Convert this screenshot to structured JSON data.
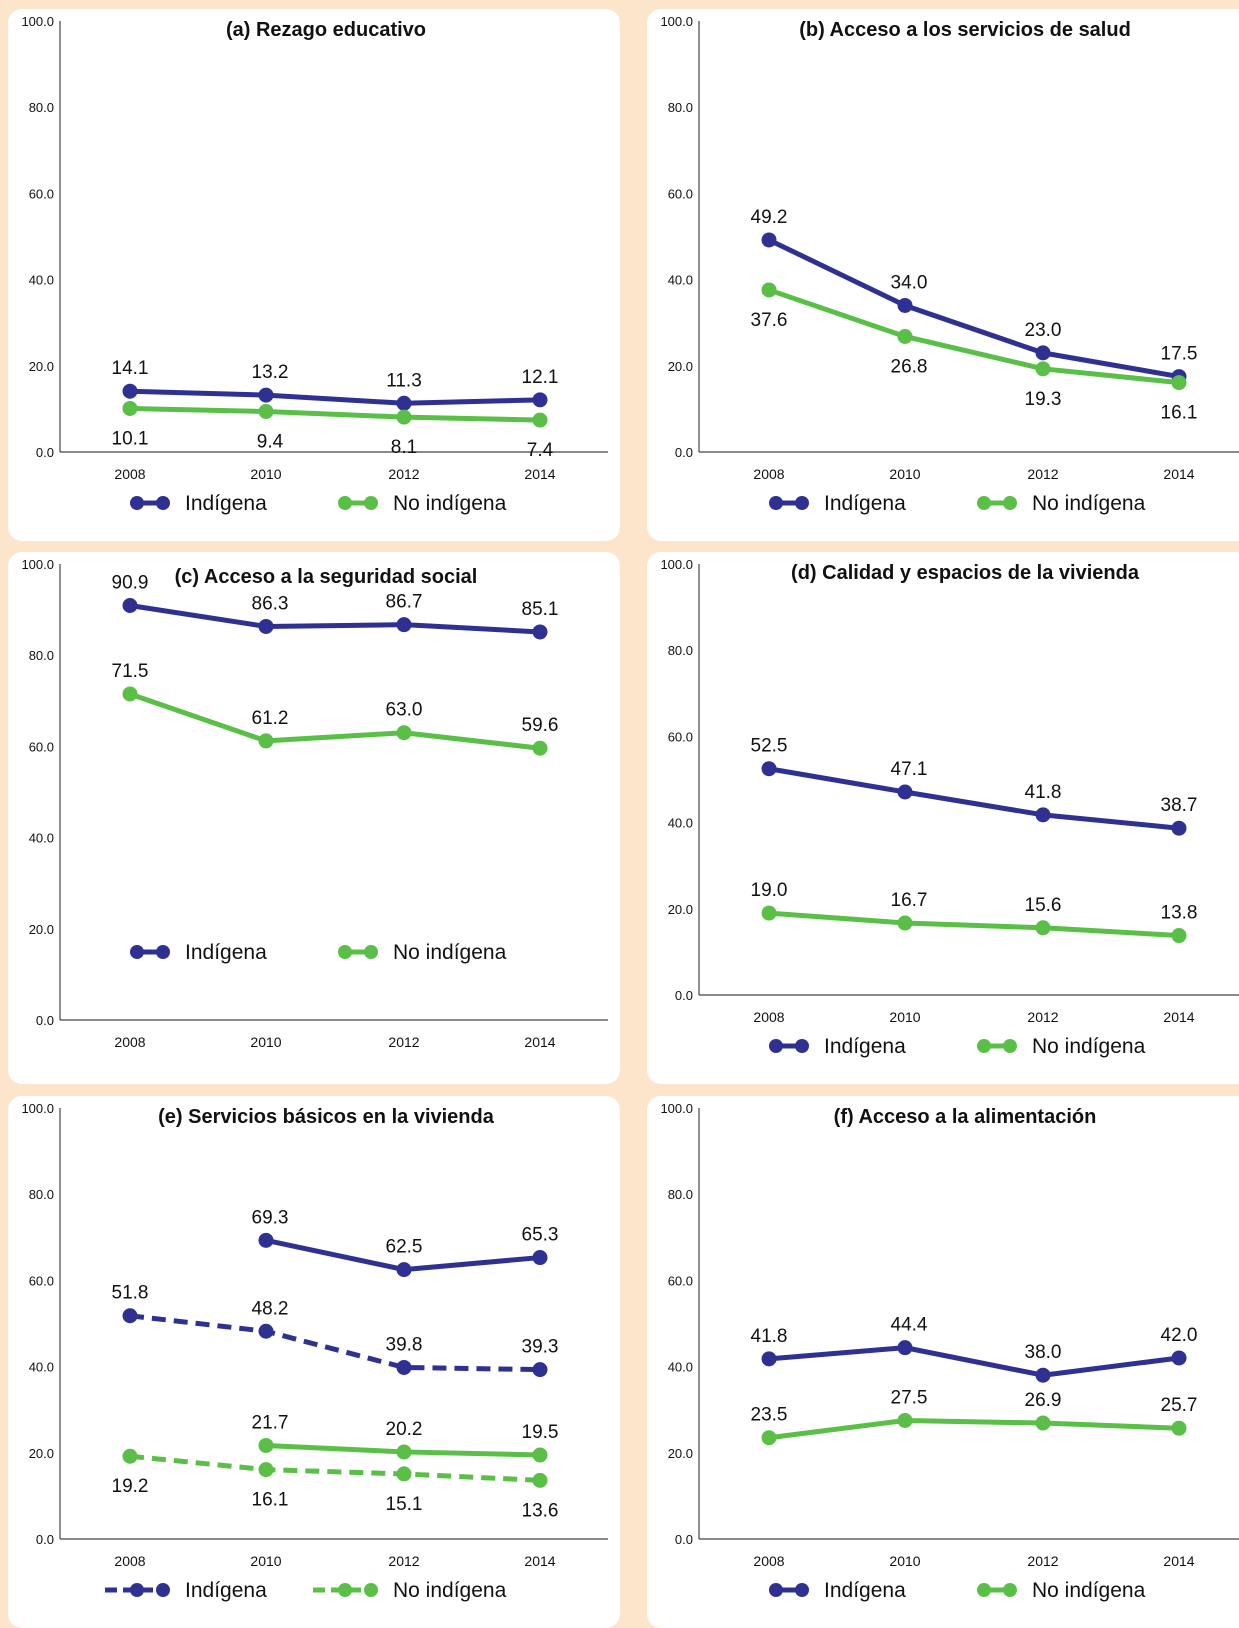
{
  "colors": {
    "indigena": "#2e3192",
    "no_indigena": "#5abf46",
    "background": "#fde5cb",
    "panel": "#ffffff"
  },
  "chart_data": [
    {
      "type": "line",
      "title": "(a) Rezago educativo",
      "categories": [
        "2008",
        "2010",
        "2012",
        "2014"
      ],
      "ylim": [
        0,
        100
      ],
      "yticks": [
        "100.0",
        "80.0",
        "60.0",
        "40.0",
        "20.0",
        "0.0"
      ],
      "series": [
        {
          "name": "Indígena",
          "values": [
            14.1,
            13.2,
            11.3,
            12.1
          ],
          "labels": [
            "14.1",
            "13.2",
            "11.3",
            "12.1"
          ],
          "color": "#2e3192",
          "dashed": false,
          "label_pos": "above"
        },
        {
          "name": "No indígena",
          "values": [
            10.1,
            9.4,
            8.1,
            7.4
          ],
          "labels": [
            "10.1",
            "9.4",
            "8.1",
            "7.4"
          ],
          "color": "#5abf46",
          "dashed": false,
          "label_pos": "below"
        }
      ],
      "legend": [
        {
          "label": "Indígena",
          "color": "#2e3192",
          "dashed": false
        },
        {
          "label": "No indígena",
          "color": "#5abf46",
          "dashed": false
        }
      ],
      "legend_position": "bottom"
    },
    {
      "type": "line",
      "title": "(b) Acceso a los servicios de salud",
      "categories": [
        "2008",
        "2010",
        "2012",
        "2014"
      ],
      "ylim": [
        0,
        100
      ],
      "yticks": [
        "100.0",
        "80.0",
        "60.0",
        "40.0",
        "20.0",
        "0.0"
      ],
      "series": [
        {
          "name": "Indígena",
          "values": [
            49.2,
            34.0,
            23.0,
            17.5
          ],
          "labels": [
            "49.2",
            "34.0",
            "23.0",
            "17.5"
          ],
          "color": "#2e3192",
          "dashed": false,
          "label_pos": "above"
        },
        {
          "name": "No indígena",
          "values": [
            37.6,
            26.8,
            19.3,
            16.1
          ],
          "labels": [
            "37.6",
            "26.8",
            "19.3",
            "16.1"
          ],
          "color": "#5abf46",
          "dashed": false,
          "label_pos": "below"
        }
      ],
      "legend": [
        {
          "label": "Indígena",
          "color": "#2e3192",
          "dashed": false
        },
        {
          "label": "No indígena",
          "color": "#5abf46",
          "dashed": false
        }
      ],
      "legend_position": "bottom"
    },
    {
      "type": "line",
      "title": "(c) Acceso a la seguridad social",
      "categories": [
        "2008",
        "2010",
        "2012",
        "2014"
      ],
      "ylim": [
        0,
        100
      ],
      "yticks": [
        "100.0",
        "80.0",
        "60.0",
        "40.0",
        "20.0",
        "0.0"
      ],
      "series": [
        {
          "name": "Indígena",
          "values": [
            90.9,
            86.3,
            86.7,
            85.1
          ],
          "labels": [
            "90.9",
            "86.3",
            "86.7",
            "85.1"
          ],
          "color": "#2e3192",
          "dashed": false,
          "label_pos": "above"
        },
        {
          "name": "No indígena",
          "values": [
            71.5,
            61.2,
            63.0,
            59.6
          ],
          "labels": [
            "71.5",
            "61.2",
            "63.0",
            "59.6"
          ],
          "color": "#5abf46",
          "dashed": false,
          "label_pos": "above"
        }
      ],
      "legend": [
        {
          "label": "Indígena",
          "color": "#2e3192",
          "dashed": false
        },
        {
          "label": "No indígena",
          "color": "#5abf46",
          "dashed": false
        }
      ],
      "legend_position": "inside-bottom"
    },
    {
      "type": "line",
      "title": "(d) Calidad y espacios de la vivienda",
      "categories": [
        "2008",
        "2010",
        "2012",
        "2014"
      ],
      "ylim": [
        0,
        100
      ],
      "yticks": [
        "100.0",
        "80.0",
        "60.0",
        "40.0",
        "20.0",
        "0.0"
      ],
      "series": [
        {
          "name": "Indígena",
          "values": [
            52.5,
            47.1,
            41.8,
            38.7
          ],
          "labels": [
            "52.5",
            "47.1",
            "41.8",
            "38.7"
          ],
          "color": "#2e3192",
          "dashed": false,
          "label_pos": "above"
        },
        {
          "name": "No indígena",
          "values": [
            19.0,
            16.7,
            15.6,
            13.8
          ],
          "labels": [
            "19.0",
            "16.7",
            "15.6",
            "13.8"
          ],
          "color": "#5abf46",
          "dashed": false,
          "label_pos": "above"
        }
      ],
      "legend": [
        {
          "label": "Indígena",
          "color": "#2e3192",
          "dashed": false
        },
        {
          "label": "No indígena",
          "color": "#5abf46",
          "dashed": false
        }
      ],
      "legend_position": "bottom"
    },
    {
      "type": "line",
      "title": "(e) Servicios básicos en la vivienda",
      "categories": [
        "2008",
        "2010",
        "2012",
        "2014"
      ],
      "ylim": [
        0,
        100
      ],
      "yticks": [
        "100.0",
        "80.0",
        "60.0",
        "40.0",
        "20.0",
        "0.0"
      ],
      "series": [
        {
          "name": "Indígena",
          "values": [
            null,
            69.3,
            62.5,
            65.3
          ],
          "labels": [
            null,
            "69.3",
            "62.5",
            "65.3"
          ],
          "color": "#2e3192",
          "dashed": false,
          "label_pos": "above"
        },
        {
          "name": "Indígena",
          "values": [
            51.8,
            48.2,
            39.8,
            39.3
          ],
          "labels": [
            "51.8",
            "48.2",
            "39.8",
            "39.3"
          ],
          "color": "#2e3192",
          "dashed": true,
          "label_pos": "above"
        },
        {
          "name": "No indígena",
          "values": [
            null,
            21.7,
            20.2,
            19.5
          ],
          "labels": [
            null,
            "21.7",
            "20.2",
            "19.5"
          ],
          "color": "#5abf46",
          "dashed": false,
          "label_pos": "above"
        },
        {
          "name": "No indígena",
          "values": [
            19.2,
            16.1,
            15.1,
            13.6
          ],
          "labels": [
            "19.2",
            "16.1",
            "15.1",
            "13.6"
          ],
          "color": "#5abf46",
          "dashed": true,
          "label_pos": "below"
        }
      ],
      "legend": [
        {
          "label": "Indígena",
          "color": "#2e3192",
          "dashed": true
        },
        {
          "label": "No indígena",
          "color": "#5abf46",
          "dashed": true
        }
      ],
      "legend_position": "bottom"
    },
    {
      "type": "line",
      "title": "(f) Acceso a la alimentación",
      "categories": [
        "2008",
        "2010",
        "2012",
        "2014"
      ],
      "ylim": [
        0,
        100
      ],
      "yticks": [
        "100.0",
        "80.0",
        "60.0",
        "40.0",
        "20.0",
        "0.0"
      ],
      "series": [
        {
          "name": "Indígena",
          "values": [
            41.8,
            44.4,
            38.0,
            42.0
          ],
          "labels": [
            "41.8",
            "44.4",
            "38.0",
            "42.0"
          ],
          "color": "#2e3192",
          "dashed": false,
          "label_pos": "above"
        },
        {
          "name": "No indígena",
          "values": [
            23.5,
            27.5,
            26.9,
            25.7
          ],
          "labels": [
            "23.5",
            "27.5",
            "26.9",
            "25.7"
          ],
          "color": "#5abf46",
          "dashed": false,
          "label_pos": "above"
        }
      ],
      "legend": [
        {
          "label": "Indígena",
          "color": "#2e3192",
          "dashed": false
        },
        {
          "label": "No indígena",
          "color": "#5abf46",
          "dashed": false
        }
      ],
      "legend_position": "bottom"
    }
  ]
}
